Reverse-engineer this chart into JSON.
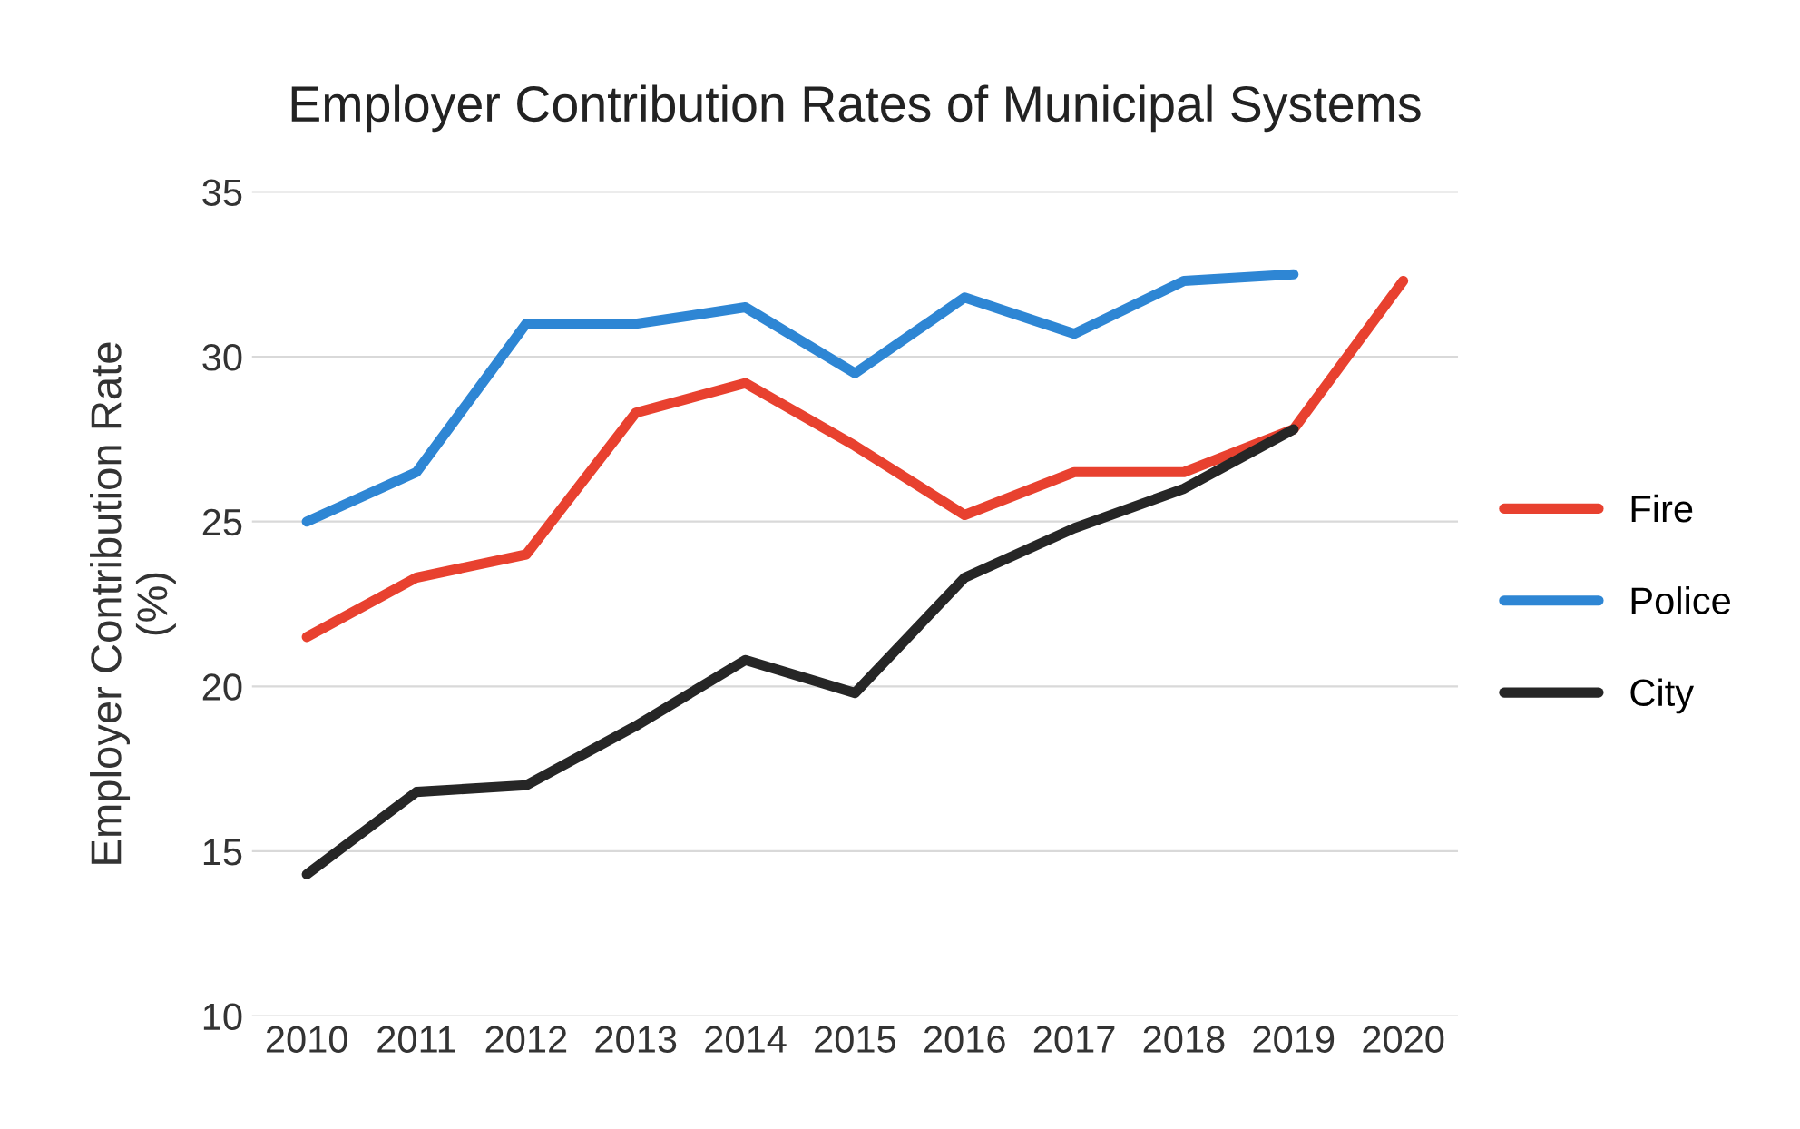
{
  "chart_data": {
    "type": "line",
    "title": "Employer Contribution Rates of Municipal Systems",
    "ylabel": "Employer Contribution Rate\n(%)",
    "categories": [
      "2010",
      "2011",
      "2012",
      "2013",
      "2014",
      "2015",
      "2016",
      "2017",
      "2018",
      "2019",
      "2020"
    ],
    "series": [
      {
        "name": "Fire",
        "color": "#e8412f",
        "values": [
          21.5,
          23.3,
          24.0,
          28.3,
          29.2,
          27.3,
          25.2,
          26.5,
          26.5,
          27.8,
          32.3
        ]
      },
      {
        "name": "Police",
        "color": "#2e86d4",
        "values": [
          25.0,
          26.5,
          31.0,
          31.0,
          31.5,
          29.5,
          31.8,
          30.7,
          32.3,
          32.5,
          null
        ]
      },
      {
        "name": "City",
        "color": "#262626",
        "values": [
          14.3,
          16.8,
          17.0,
          18.8,
          20.8,
          19.8,
          23.3,
          24.8,
          26.0,
          27.8,
          null
        ]
      }
    ],
    "ylim": [
      10,
      35
    ],
    "yticks": [
      10,
      15,
      20,
      25,
      30,
      35
    ],
    "grid": "y",
    "legend": "right",
    "marker": "none",
    "line_style": "solid"
  }
}
